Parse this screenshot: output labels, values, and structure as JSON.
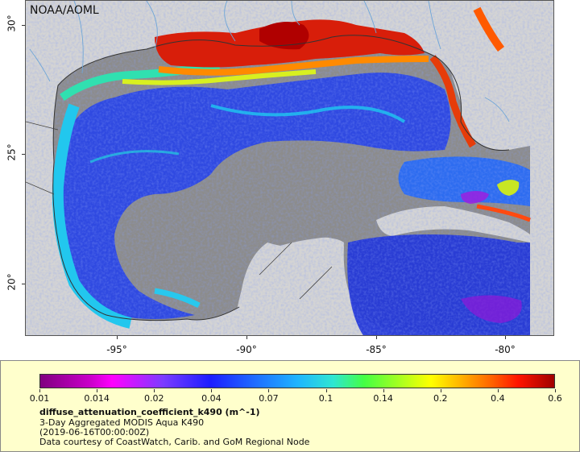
{
  "map": {
    "agency": "NOAA/AOML",
    "lat_ticks": [
      "30°",
      "25°",
      "20°"
    ],
    "lon_ticks": [
      "-95°",
      "-90°",
      "-85°",
      "-80°"
    ],
    "colors": {
      "land": "#d4d4d4",
      "no_data": "#8c8c8c",
      "coastline": "#333333",
      "rivers": "#6fa6d8"
    }
  },
  "legend": {
    "colorbar_ticks": [
      "0.01",
      "0.014",
      "0.02",
      "0.04",
      "0.07",
      "0.1",
      "0.14",
      "0.2",
      "0.4",
      "0.6"
    ],
    "variable": "diffuse_attenuation_coefficient_k490 (m^-1)",
    "line1": "3-Day Aggregated MODIS Aqua K490",
    "line2": "(2019-06-16T00:00:00Z)",
    "line3": "Data courtesy of CoastWatch, Carib. and GoM Regional Node"
  }
}
